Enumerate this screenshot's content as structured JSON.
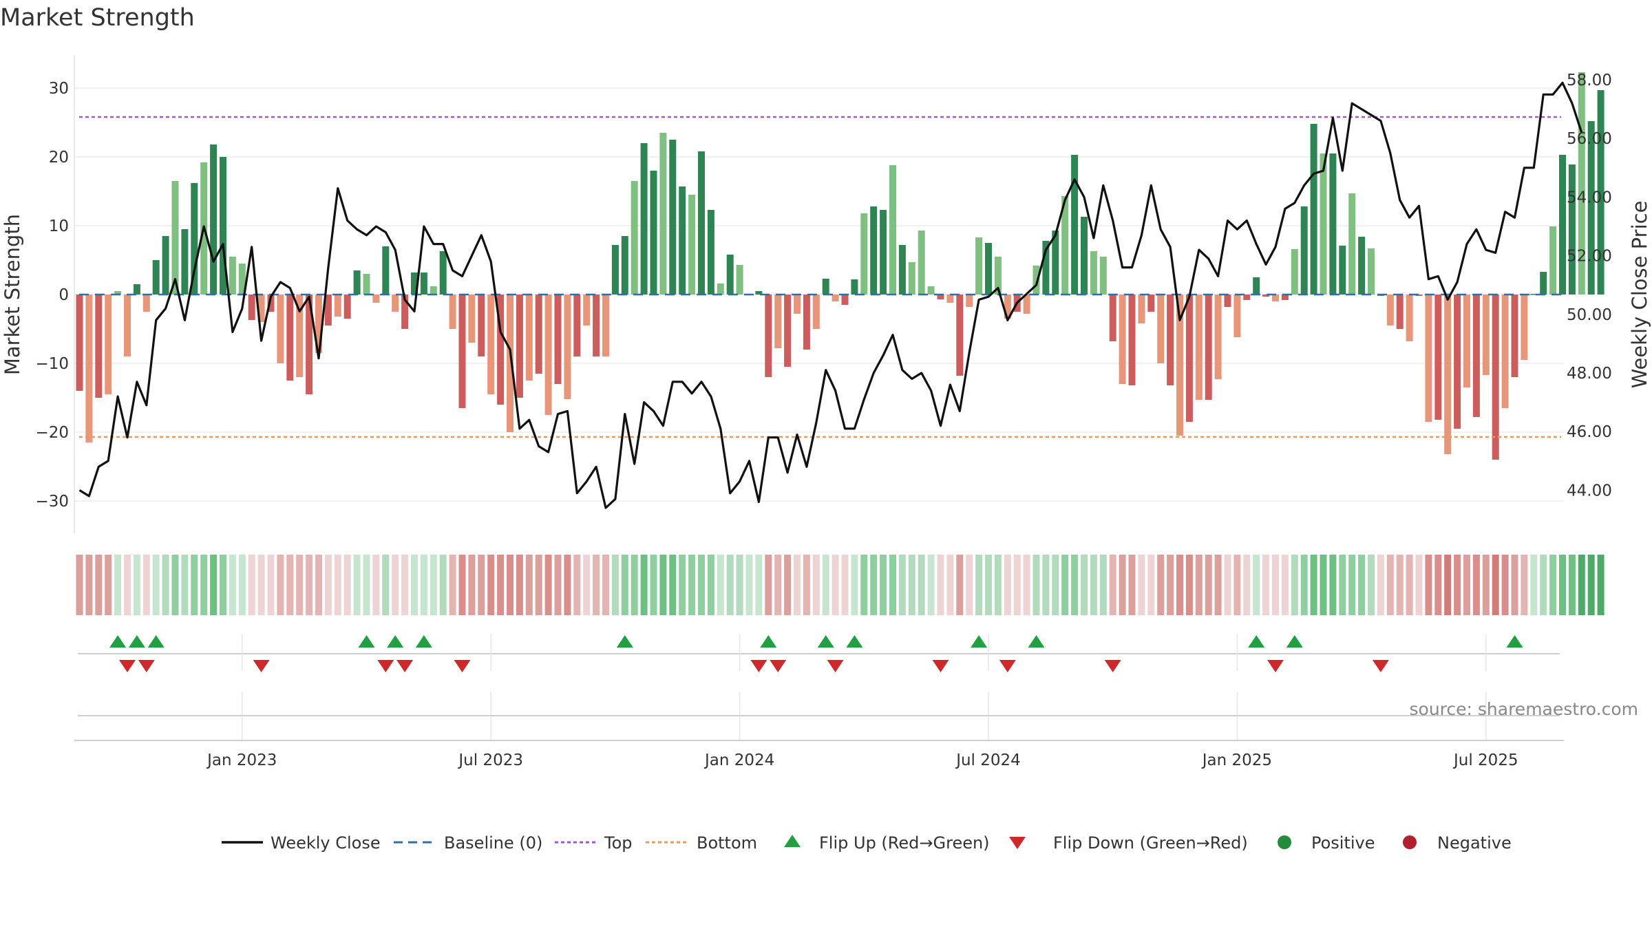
{
  "chart_data": {
    "type": "bar",
    "title": "Market Strength",
    "ylabel_left": "Market Strength",
    "ylabel_right": "Weekly Close Price",
    "ylim_left": [
      -35,
      35
    ],
    "ylim_right": [
      43,
      58.5
    ],
    "left_ticks": [
      30,
      20,
      10,
      0,
      -10,
      -20,
      -30
    ],
    "left_tick_labels": [
      "30",
      "20",
      "10",
      "0",
      "−10",
      "−20",
      "−30"
    ],
    "right_ticks": [
      58,
      56,
      54,
      52,
      50,
      48,
      46,
      44
    ],
    "right_tick_labels": [
      "58.00",
      "56.00",
      "54.00",
      "52.00",
      "50.00",
      "48.00",
      "46.00",
      "44.00"
    ],
    "top_level": 25.8,
    "bottom_level": -20.7,
    "x_start": "2022-09-01",
    "week_step": 1,
    "x_tick_positions": [
      17,
      43,
      69,
      95,
      121,
      147
    ],
    "x_tick_labels": [
      "Jan 2023",
      "Jul 2023",
      "Jan 2024",
      "Jul 2024",
      "Jan 2025",
      "Jul 2025"
    ],
    "strength": [
      -14,
      -21.5,
      -15,
      -14.5,
      0.5,
      -9,
      1.5,
      -2.5,
      5,
      8.5,
      16.5,
      9.5,
      16.2,
      19.2,
      21.8,
      20,
      5.5,
      4.5,
      -3.7,
      -4,
      -2.5,
      -10,
      -12.5,
      -12,
      -14.5,
      -8.5,
      -4.5,
      -3.2,
      -3.5,
      3.5,
      3,
      -1.2,
      7,
      -2.5,
      -5,
      3.2,
      3.2,
      1.2,
      6.3,
      -5,
      -16.5,
      -7,
      -9,
      -14.5,
      -16,
      -20,
      -15,
      -12.5,
      -11.5,
      -17.5,
      -13,
      -15.2,
      -9,
      -4.5,
      -9,
      -9,
      7.2,
      8.5,
      16.5,
      22,
      18,
      23.5,
      22.5,
      15.7,
      14.5,
      20.8,
      12.3,
      1.6,
      5.8,
      4.3,
      0.1,
      0.5,
      -12,
      -7.8,
      -10.5,
      -2.8,
      -8,
      -5,
      2.3,
      -1,
      -1.5,
      2.2,
      11.8,
      12.8,
      12.3,
      18.8,
      7.2,
      4.7,
      9.3,
      1.2,
      -0.7,
      -1.2,
      -11.8,
      -1.8,
      8.3,
      7.5,
      5.5,
      -3.5,
      -2.5,
      -2.8,
      4.2,
      7.8,
      9.3,
      14.3,
      20.3,
      11.3,
      6.3,
      5.5,
      -6.8,
      -13,
      -13.2,
      -4.2,
      -2.5,
      -10,
      -13.2,
      -20.5,
      -18.5,
      -15.3,
      -15.3,
      -12.3,
      -1.8,
      -6.2,
      -0.8,
      2.5,
      -0.3,
      -1,
      -0.8,
      6.6,
      12.8,
      24.8,
      20.5,
      20.5,
      7.1,
      14.7,
      8.4,
      6.7,
      -0.2,
      -4.5,
      -5,
      -6.8,
      -0.2,
      -18.5,
      -18.2,
      -23.2,
      -19.5,
      -13.5,
      -17.8,
      -11.7,
      -24,
      -16.5,
      -12,
      -9.5,
      0.1,
      3.3,
      9.9,
      20.3,
      18.9,
      32.3,
      25.2,
      29.7
    ],
    "weekly_close": [
      44,
      43.8,
      44.8,
      45,
      47.2,
      45.8,
      47.7,
      46.9,
      49.8,
      50.2,
      51.2,
      49.8,
      51.5,
      53,
      51.8,
      52.4,
      49.4,
      50.2,
      52.3,
      49.1,
      50.6,
      51.1,
      50.9,
      50.1,
      50.6,
      48.5,
      51.6,
      54.3,
      53.2,
      52.9,
      52.7,
      53,
      52.8,
      52.2,
      50.5,
      50.1,
      53,
      52.4,
      52.4,
      51.5,
      51.3,
      52,
      52.7,
      51.8,
      49.4,
      48.8,
      46.1,
      46.4,
      45.5,
      45.3,
      46.6,
      46.7,
      43.9,
      44.3,
      44.8,
      43.4,
      43.7,
      46.6,
      44.9,
      47,
      46.7,
      46.2,
      47.7,
      47.7,
      47.3,
      47.7,
      47.2,
      46.1,
      43.9,
      44.3,
      45,
      43.6,
      45.8,
      45.8,
      44.6,
      45.9,
      44.8,
      46.3,
      48.1,
      47.4,
      46.1,
      46.1,
      47.1,
      48,
      48.6,
      49.3,
      48.1,
      47.8,
      48,
      47.4,
      46.2,
      47.6,
      46.7,
      48.7,
      50.5,
      50.6,
      50.9,
      49.8,
      50.4,
      50.7,
      51,
      52.2,
      52.7,
      53.9,
      54.6,
      54,
      52.6,
      54.4,
      53.2,
      51.6,
      51.6,
      52.7,
      54.4,
      52.9,
      52.3,
      49.8,
      50.6,
      52.2,
      51.9,
      51.3,
      53.2,
      52.9,
      53.2,
      52.4,
      51.7,
      52.3,
      53.6,
      53.8,
      54.4,
      54.8,
      54.9,
      56.7,
      54.9,
      57.2,
      57,
      56.8,
      56.6,
      55.5,
      53.9,
      53.3,
      53.7,
      51.2,
      51.3,
      50.5,
      51.1,
      52.4,
      52.9,
      52.2,
      52.1,
      53.5,
      53.3,
      55,
      55,
      57.5,
      57.5,
      57.9,
      57.2,
      56.2
    ],
    "strip_colors": [
      "#dba09c",
      "#dba09c",
      "#dba09c",
      "#dba09c",
      "#c6e5cf",
      "#edd3d3",
      "#c6e5cf",
      "#edd3d3",
      "#c6e5cf",
      "#b2dbbd",
      "#8fce9f",
      "#b2dbbd",
      "#8fce9f",
      "#8fce9f",
      "#6dbf82",
      "#8fce9f",
      "#c6e5cf",
      "#c6e5cf",
      "#edd3d3",
      "#edd3d3",
      "#edd3d3",
      "#e3b4b2",
      "#e3b4b2",
      "#e3b4b2",
      "#e3b4b2",
      "#e3b4b2",
      "#edd3d3",
      "#edd3d3",
      "#edd3d3",
      "#c6e5cf",
      "#c6e5cf",
      "#edd3d3",
      "#b2dbbd",
      "#edd3d3",
      "#edd3d3",
      "#c6e5cf",
      "#c6e5cf",
      "#c6e5cf",
      "#b2dbbd",
      "#e3b4b2",
      "#d98e8b",
      "#dba09c",
      "#dba09c",
      "#d98e8b",
      "#d98e8b",
      "#d98e8b",
      "#d98e8b",
      "#dba09c",
      "#dba09c",
      "#d98e8b",
      "#dba09c",
      "#d98e8b",
      "#e3b4b2",
      "#edd3d3",
      "#e3b4b2",
      "#e3b4b2",
      "#b2dbbd",
      "#8fce9f",
      "#8fce9f",
      "#6dbf82",
      "#8fce9f",
      "#6dbf82",
      "#6dbf82",
      "#8fce9f",
      "#8fce9f",
      "#8fce9f",
      "#8fce9f",
      "#c6e5cf",
      "#b2dbbd",
      "#b2dbbd",
      "#c6e5cf",
      "#c6e5cf",
      "#dba09c",
      "#e3b4b2",
      "#dba09c",
      "#edd3d3",
      "#e3b4b2",
      "#edd3d3",
      "#c6e5cf",
      "#edd3d3",
      "#edd3d3",
      "#c6e5cf",
      "#8fce9f",
      "#8fce9f",
      "#8fce9f",
      "#8fce9f",
      "#b2dbbd",
      "#b2dbbd",
      "#b2dbbd",
      "#c6e5cf",
      "#edd3d3",
      "#edd3d3",
      "#dba09c",
      "#edd3d3",
      "#b2dbbd",
      "#b2dbbd",
      "#b2dbbd",
      "#edd3d3",
      "#edd3d3",
      "#edd3d3",
      "#b2dbbd",
      "#b2dbbd",
      "#b2dbbd",
      "#8fce9f",
      "#8fce9f",
      "#b2dbbd",
      "#b2dbbd",
      "#b2dbbd",
      "#e3b4b2",
      "#dba09c",
      "#dba09c",
      "#edd3d3",
      "#edd3d3",
      "#dba09c",
      "#dba09c",
      "#d98e8b",
      "#d98e8b",
      "#dba09c",
      "#dba09c",
      "#dba09c",
      "#edd3d3",
      "#e3b4b2",
      "#edd3d3",
      "#c6e5cf",
      "#edd3d3",
      "#edd3d3",
      "#edd3d3",
      "#b2dbbd",
      "#8fce9f",
      "#6dbf82",
      "#6dbf82",
      "#6dbf82",
      "#8fce9f",
      "#8fce9f",
      "#8fce9f",
      "#b2dbbd",
      "#edd3d3",
      "#e3b4b2",
      "#e3b4b2",
      "#e3b4b2",
      "#edd3d3",
      "#d98e8b",
      "#d98e8b",
      "#d47a77",
      "#d98e8b",
      "#dba09c",
      "#d98e8b",
      "#dba09c",
      "#d47a77",
      "#d98e8b",
      "#dba09c",
      "#e3b4b2",
      "#c6e5cf",
      "#b2dbbd",
      "#8fce9f",
      "#6dbf82",
      "#6dbf82",
      "#4fa968",
      "#4fa968",
      "#4fa968"
    ],
    "flip_up_weeks": [
      4,
      6,
      8,
      30,
      33,
      36,
      57,
      72,
      78,
      81,
      94,
      100,
      123,
      127,
      150
    ],
    "flip_down_weeks": [
      5,
      7,
      19,
      32,
      34,
      40,
      71,
      73,
      79,
      90,
      97,
      108,
      125,
      136
    ],
    "colors": {
      "pos_strong": "#2e8553",
      "pos_weak": "#7fbf7f",
      "neg_strong": "#cd5c5c",
      "neg_weak": "#e8967a",
      "close_line": "#111111",
      "baseline": "#2f6fa8",
      "top_line": "#9b59d6",
      "bottom_line": "#e89a5a",
      "flip_up": "#20a040",
      "flip_down": "#d0282a",
      "positive_dot": "#238b3a",
      "negative_dot": "#b02030"
    }
  },
  "legend": {
    "weekly_close": "Weekly Close",
    "baseline": "Baseline (0)",
    "top": "Top",
    "bottom": "Bottom",
    "flip_up": "Flip Up (Red→Green)",
    "flip_down": "Flip Down (Green→Red)",
    "positive": "Positive",
    "negative": "Negative"
  },
  "source_text": "source: sharemaestro.com"
}
